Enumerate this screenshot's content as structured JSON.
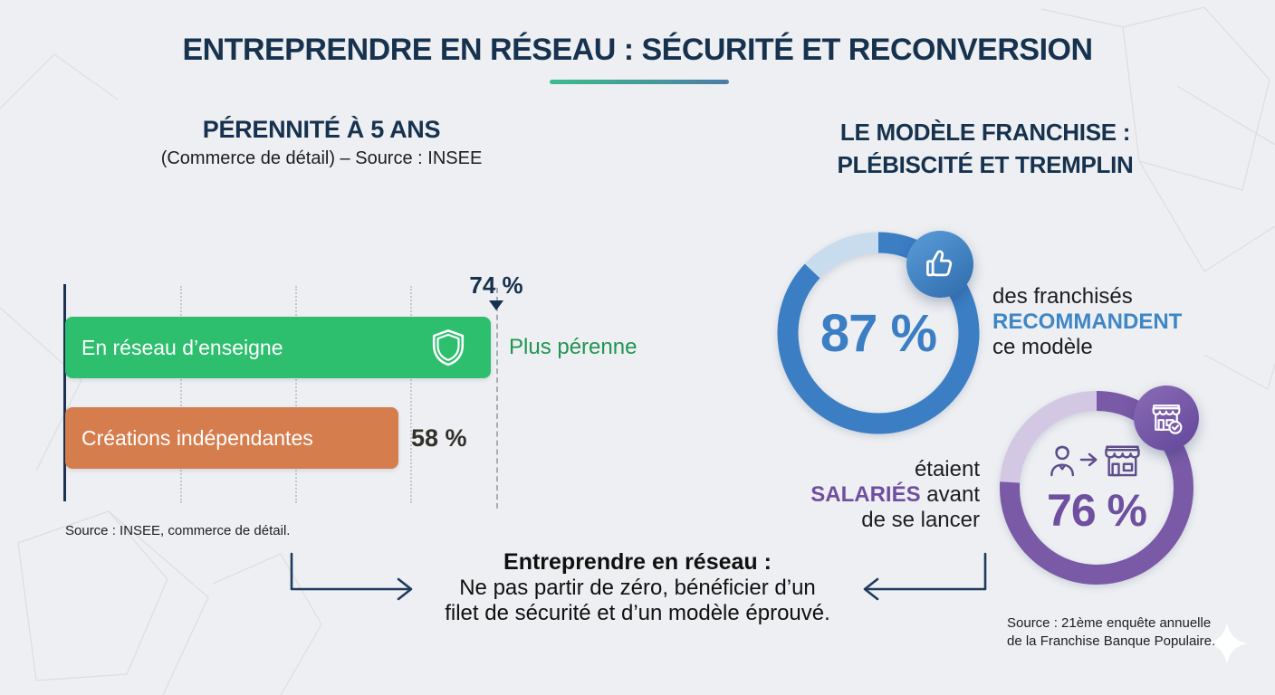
{
  "title": "ENTREPRENDRE EN RÉSEAU : SÉCURITÉ ET RECONVERSION",
  "left_section": {
    "heading": "PÉRENNITÉ À 5 ANS",
    "subheading": "(Commerce de détail) – Source : INSEE",
    "bar_note": "Plus pérenne",
    "source": "Source : INSEE, commerce de détail."
  },
  "right_section": {
    "heading_line1": "LE MODÈLE FRANCHISE :",
    "heading_line2": "PLÉBISCITÉ ET TREMPLIN",
    "recommend_caption": {
      "line1": "des franchisés",
      "highlight": "RECOMMANDENT",
      "line3": "ce modèle"
    },
    "salaries_caption": {
      "line1": "étaient",
      "highlight": "SALARIÉS",
      "line2_rest": " avant",
      "line3": "de se lancer"
    },
    "source_line1": "Source : 21ème enquête annuelle",
    "source_line2": "de la Franchise Banque Populaire."
  },
  "footer": {
    "heading": "Entreprendre en réseau :",
    "line2": "Ne pas partir de zéro, bénéficier d’un",
    "line3": "filet de sécurité et d’un modèle éprouvé."
  },
  "colors": {
    "background": "#edeff2",
    "navy": "#16324e",
    "green_bar": "#2dbe6e",
    "green_text": "#219552",
    "orange_bar": "#d67d4e",
    "blue_donut": "#3b7ec3",
    "blue_donut_light": "#c9dcee",
    "purple_donut": "#7a5aa7",
    "purple_donut_light": "#d3c8e3",
    "purple_text": "#6f4f9f",
    "underline_gradient_start": "#3bbd8c",
    "underline_gradient_end": "#4d7ca6"
  },
  "chart_data": [
    {
      "type": "bar",
      "orientation": "horizontal",
      "title": "PÉRENNITÉ À 5 ANS",
      "subtitle": "(Commerce de détail) – Source : INSEE",
      "categories": [
        "En réseau d’enseigne",
        "Créations indépendantes"
      ],
      "values": [
        74,
        58
      ],
      "unit": "%",
      "value_labels": [
        "74 %",
        "58 %"
      ],
      "bar_colors": [
        "#2dbe6e",
        "#d67d4e"
      ],
      "xlim": [
        0,
        80
      ],
      "gridlines_pct": [
        20,
        40,
        60
      ],
      "annotation": "Plus pérenne",
      "source": "Source : INSEE, commerce de détail."
    },
    {
      "type": "pie",
      "style": "donut",
      "center_label": "87 %",
      "values": [
        87,
        13
      ],
      "caption": "des franchisés RECOMMANDENT ce modèle",
      "colors": [
        "#3b7ec3",
        "#c9dcee"
      ],
      "icon": "thumbs-up"
    },
    {
      "type": "pie",
      "style": "donut",
      "center_label": "76 %",
      "values": [
        76,
        24
      ],
      "caption": "étaient SALARIÉS avant de se lancer",
      "colors": [
        "#7a5aa7",
        "#d3c8e3"
      ],
      "icon": "employee-to-storefront"
    }
  ]
}
